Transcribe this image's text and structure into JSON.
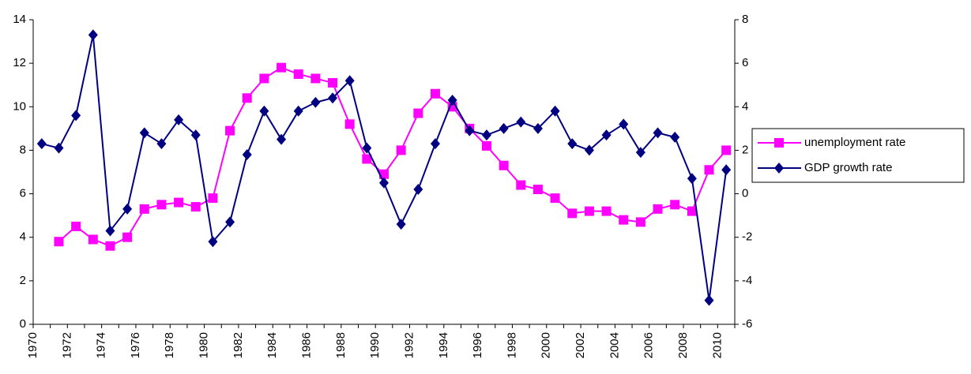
{
  "chart_data": {
    "type": "line",
    "categories": [
      "1970",
      null,
      "1972",
      null,
      "1974",
      null,
      "1976",
      null,
      "1978",
      null,
      "1980",
      null,
      "1982",
      null,
      "1984",
      null,
      "1986",
      null,
      "1988",
      null,
      "1990",
      null,
      "1992",
      null,
      "1994",
      null,
      "1996",
      null,
      "1998",
      null,
      "2000",
      null,
      "2002",
      null,
      "2004",
      null,
      "2006",
      null,
      "2008",
      null,
      "2010"
    ],
    "series": [
      {
        "name": "unemployment rate",
        "color": "#ff00ff",
        "marker": "square",
        "values": [
          null,
          3.8,
          4.5,
          3.9,
          3.6,
          4.0,
          5.3,
          5.5,
          5.6,
          5.4,
          5.8,
          8.9,
          10.4,
          11.3,
          11.8,
          11.5,
          11.3,
          11.1,
          9.2,
          7.6,
          6.9,
          8.0,
          9.7,
          10.6,
          10.0,
          9.0,
          8.2,
          7.3,
          6.4,
          6.2,
          5.8,
          5.1,
          5.2,
          5.2,
          4.8,
          4.7,
          5.3,
          5.5,
          5.2,
          7.1,
          8.0
        ]
      },
      {
        "name": "GDP growth rate",
        "color": "#000080",
        "marker": "diamond",
        "axis": "y2",
        "values": [
          2.3,
          2.1,
          3.6,
          7.3,
          -1.7,
          -0.7,
          2.8,
          2.3,
          3.4,
          2.7,
          -2.2,
          -1.3,
          1.8,
          3.8,
          2.5,
          3.8,
          4.2,
          4.4,
          5.2,
          2.1,
          0.5,
          -1.4,
          0.2,
          2.3,
          4.3,
          2.9,
          2.7,
          3.0,
          3.3,
          3.0,
          3.8,
          2.3,
          2.0,
          2.7,
          3.2,
          1.9,
          2.8,
          2.6,
          0.7,
          -4.9,
          1.1
        ]
      }
    ],
    "ylim": [
      0,
      14
    ],
    "yticks": [
      0,
      2,
      4,
      6,
      8,
      10,
      12,
      14
    ],
    "y2lim": [
      -6,
      8
    ],
    "y2ticks": [
      -6,
      -4,
      -2,
      0,
      2,
      4,
      6,
      8
    ],
    "legend": "right",
    "grid": false
  }
}
